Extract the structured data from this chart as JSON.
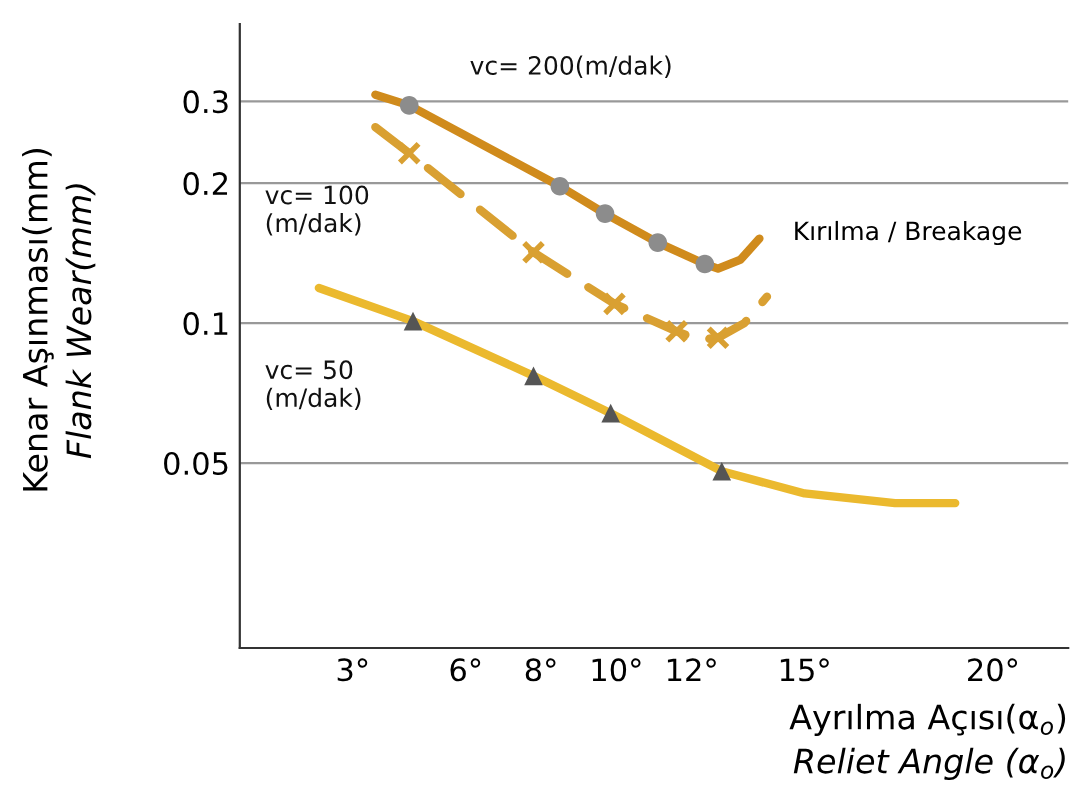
{
  "chart_data": {
    "type": "line",
    "xlabel": "Ayrılma Açısı(α$_{o}$)\nReliet Angle (α$_{o}$)",
    "ylabel": "Kenar Aşınması(mm)\nFlank Wear(mm)",
    "log": "y",
    "grid": "y",
    "xlim": [
      0,
      22
    ],
    "ylim": [
      0.02,
      0.44
    ],
    "xticks": [
      {
        "value": 3,
        "label": "3°"
      },
      {
        "value": 6,
        "label": "6°"
      },
      {
        "value": 8,
        "label": "8°"
      },
      {
        "value": 10,
        "label": "10°"
      },
      {
        "value": 12,
        "label": "12°"
      },
      {
        "value": 15,
        "label": "15°"
      },
      {
        "value": 20,
        "label": "20°"
      }
    ],
    "yticks": [
      0.05,
      0.1,
      0.2,
      0.3
    ],
    "series": [
      {
        "name": "vc= 200(m/dak)",
        "color": "#d08b1c",
        "line_style": "solid",
        "x": [
          3.6,
          4.5,
          8.5,
          9.7,
          11.1,
          12.35,
          12.7,
          13.3,
          13.8
        ],
        "values": [
          0.31,
          0.294,
          0.197,
          0.172,
          0.149,
          0.134,
          0.131,
          0.137,
          0.152
        ]
      },
      {
        "name": "vc= 100\n(m/dak)",
        "color": "#d9a032",
        "line_style": "dashed",
        "x": [
          3.6,
          4.5,
          7.8,
          9.95,
          11.6,
          12.2,
          12.7,
          13.4,
          14.0
        ],
        "values": [
          0.264,
          0.232,
          0.142,
          0.11,
          0.096,
          0.092,
          0.093,
          0.1,
          0.114
        ]
      },
      {
        "name": "vc= 50\n(m/dak)",
        "color": "#ebb92e",
        "line_style": "solid",
        "x": [
          2.1,
          4.6,
          7.8,
          9.85,
          12.8,
          15,
          17.4,
          19.0
        ],
        "values": [
          0.119,
          0.101,
          0.077,
          0.064,
          0.048,
          0.043,
          0.041,
          0.041
        ]
      },
      {
        "type": "scatter",
        "color": "#8c8c8c",
        "marker": "circle",
        "x": [
          4.5,
          8.5,
          9.7,
          11.1,
          12.35
        ],
        "values": [
          0.294,
          0.197,
          0.172,
          0.149,
          0.134
        ]
      },
      {
        "type": "scatter",
        "color": "#d9a032",
        "marker": "cross",
        "x": [
          4.5,
          7.8,
          9.95,
          11.6,
          12.7
        ],
        "values": [
          0.232,
          0.142,
          0.11,
          0.096,
          0.093
        ]
      },
      {
        "type": "scatter",
        "color": "#555555",
        "marker": "triangle",
        "x": [
          4.6,
          7.8,
          9.85,
          12.8
        ],
        "values": [
          0.101,
          0.077,
          0.064,
          0.048
        ]
      }
    ],
    "annotations": [
      "Kırılma / Breakage"
    ]
  }
}
